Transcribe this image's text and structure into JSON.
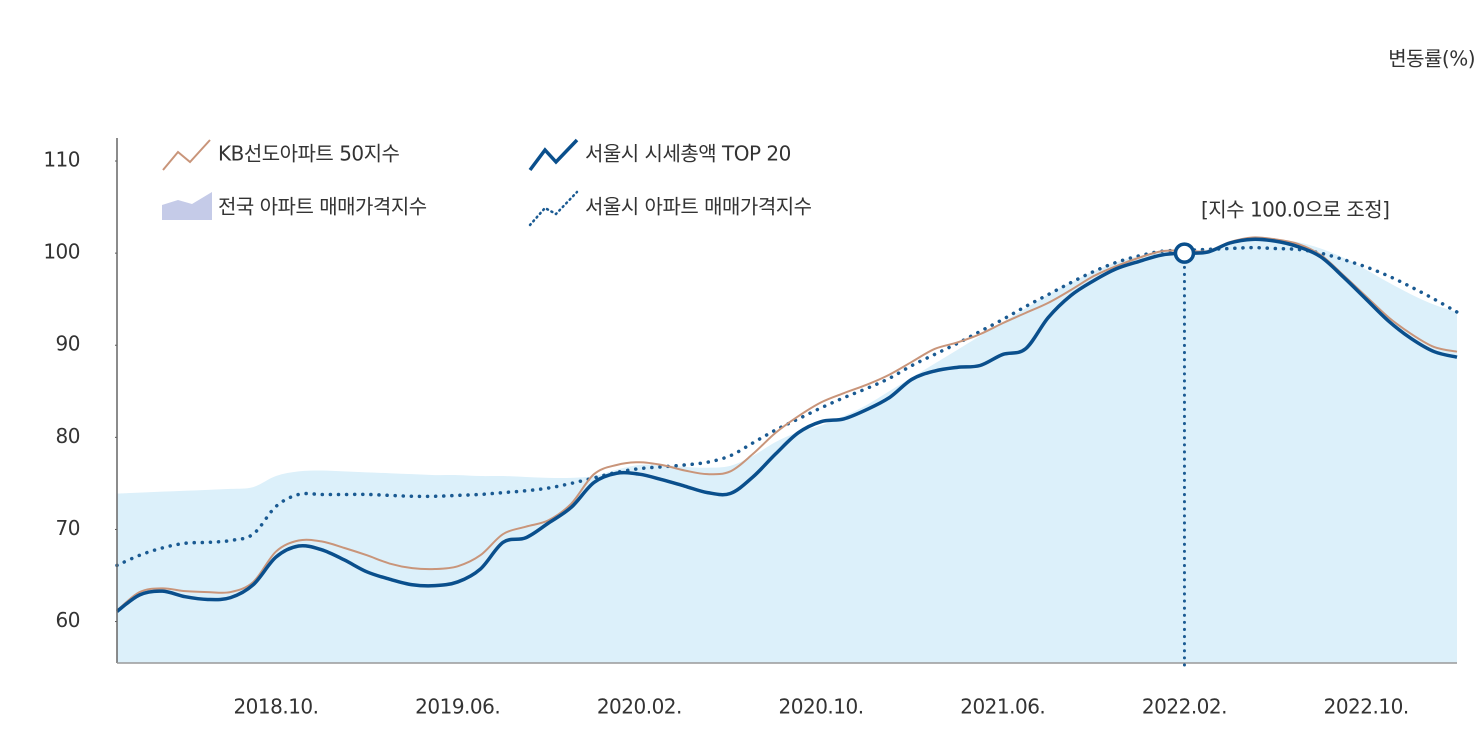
{
  "chart_data": {
    "type": "line",
    "y_unit_label": "변동률(%)",
    "categories": [
      null,
      null,
      null,
      null,
      null,
      null,
      null,
      "2018.10.",
      null,
      null,
      null,
      null,
      null,
      null,
      null,
      "2019.06.",
      null,
      null,
      null,
      null,
      null,
      null,
      null,
      "2020.02.",
      null,
      null,
      null,
      null,
      null,
      null,
      null,
      "2020.10.",
      null,
      null,
      null,
      null,
      null,
      null,
      null,
      "2021.06.",
      null,
      null,
      null,
      null,
      null,
      null,
      null,
      "2022.02.",
      null,
      null,
      null,
      null,
      null,
      null,
      null,
      "2022.10.",
      null,
      null,
      null,
      null
    ],
    "ylim": [
      55.5,
      112.5
    ],
    "yticks": [
      60,
      70,
      80,
      90,
      100,
      110
    ],
    "series": [
      {
        "name": "KB선도아파트 50지수",
        "color": "#c9957a",
        "style": "line",
        "values": [
          61.2,
          63.2,
          63.6,
          63.3,
          63.2,
          63.2,
          64.3,
          67.6,
          68.8,
          68.7,
          68.0,
          67.2,
          66.3,
          65.8,
          65.7,
          66.0,
          67.2,
          69.5,
          70.3,
          71.0,
          72.8,
          76.0,
          77.0,
          77.3,
          77.0,
          76.4,
          76.0,
          76.3,
          78.2,
          80.5,
          82.3,
          83.8,
          84.8,
          85.7,
          86.8,
          88.2,
          89.6,
          90.3,
          91.2,
          92.4,
          93.5,
          94.6,
          96.0,
          97.5,
          98.6,
          99.5,
          100.2,
          100.3,
          100.2,
          101.2,
          101.7,
          101.5,
          101.0,
          99.8,
          97.6,
          95.3,
          93.0,
          91.2,
          89.8,
          89.3
        ]
      },
      {
        "name": "서울시 시세총액 TOP 20",
        "color": "#0a4f8c",
        "style": "line",
        "values": [
          61.1,
          62.9,
          63.3,
          62.7,
          62.4,
          62.6,
          64.0,
          67.0,
          68.2,
          67.8,
          66.7,
          65.4,
          64.6,
          64.0,
          63.9,
          64.3,
          65.7,
          68.6,
          69.1,
          70.7,
          72.4,
          75.1,
          76.1,
          76.0,
          75.4,
          74.7,
          74.0,
          73.9,
          75.7,
          78.2,
          80.5,
          81.7,
          82.0,
          83.0,
          84.3,
          86.3,
          87.2,
          87.6,
          87.8,
          89.0,
          89.6,
          93.0,
          95.4,
          97.0,
          98.3,
          99.1,
          99.8,
          100.0,
          100.1,
          101.1,
          101.5,
          101.3,
          100.7,
          99.6,
          97.4,
          95.0,
          92.6,
          90.7,
          89.3,
          88.7
        ]
      },
      {
        "name": "전국 아파트 매매가격지수",
        "color": "#dcf0fa",
        "style": "area",
        "values": [
          73.9,
          74.0,
          74.1,
          74.2,
          74.3,
          74.4,
          74.6,
          75.8,
          76.3,
          76.4,
          76.3,
          76.2,
          76.1,
          76.0,
          75.9,
          75.9,
          75.8,
          75.8,
          75.7,
          75.6,
          75.6,
          75.8,
          76.5,
          77.0,
          77.0,
          76.8,
          76.7,
          76.9,
          78.0,
          79.5,
          80.6,
          81.3,
          82.3,
          83.5,
          85.0,
          86.5,
          88.0,
          89.5,
          91.0,
          92.5,
          94.0,
          95.5,
          96.8,
          98.0,
          99.0,
          99.7,
          100.1,
          100.2,
          100.4,
          100.9,
          101.4,
          101.5,
          101.2,
          100.5,
          99.5,
          98.2,
          96.8,
          95.5,
          94.4,
          93.6
        ]
      },
      {
        "name": "서울시 아파트 매매가격지수",
        "color": "#1a5a92",
        "style": "dotted",
        "values": [
          66.1,
          67.2,
          68.0,
          68.5,
          68.6,
          68.8,
          69.5,
          72.5,
          73.8,
          73.8,
          73.8,
          73.8,
          73.7,
          73.6,
          73.6,
          73.7,
          73.8,
          74.0,
          74.2,
          74.5,
          75.0,
          75.6,
          76.2,
          76.6,
          76.8,
          77.0,
          77.3,
          78.0,
          79.4,
          80.8,
          82.0,
          83.2,
          84.3,
          85.3,
          86.4,
          87.8,
          89.0,
          90.2,
          91.5,
          92.8,
          94.2,
          95.5,
          96.8,
          98.0,
          99.0,
          99.7,
          100.2,
          100.3,
          100.4,
          100.5,
          100.6,
          100.5,
          100.4,
          100.0,
          99.3,
          98.5,
          97.5,
          96.3,
          95.0,
          93.6
        ]
      }
    ],
    "annotation": {
      "text": "[지수 100.0으로 조정]",
      "x": "2022.02.",
      "value": 100
    }
  }
}
